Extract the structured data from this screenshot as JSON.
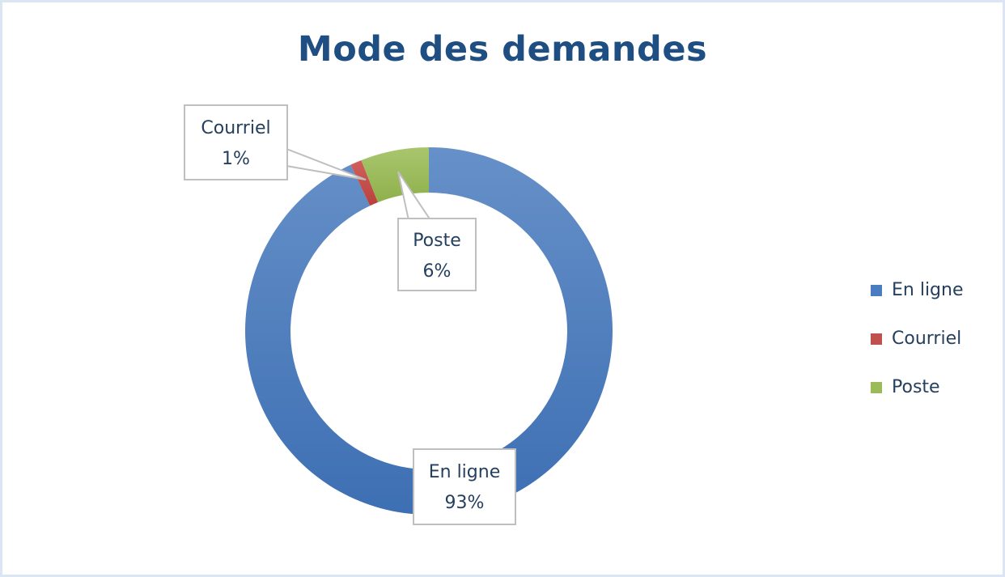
{
  "chart_data": {
    "type": "pie",
    "subtype": "doughnut",
    "title": "Mode des demandes",
    "categories": [
      "En ligne",
      "Courriel",
      "Poste"
    ],
    "values": [
      93,
      1,
      6
    ],
    "unit": "%",
    "colors": [
      "#4a7dc0",
      "#c0504d",
      "#9bbb59"
    ],
    "data_labels": [
      {
        "category": "En ligne",
        "text": "93%"
      },
      {
        "category": "Courriel",
        "text": "1%"
      },
      {
        "category": "Poste",
        "text": "6%"
      }
    ],
    "start_angle": 0,
    "direction": "clockwise",
    "legend_position": "right"
  },
  "title": "Mode des demandes",
  "labels": {
    "enligne": {
      "name": "En ligne",
      "value": "93%"
    },
    "courriel": {
      "name": "Courriel",
      "value": "1%"
    },
    "poste": {
      "name": "Poste",
      "value": "6%"
    }
  },
  "legend": [
    {
      "label": "En ligne",
      "color": "#4a7dc0"
    },
    {
      "label": "Courriel",
      "color": "#c0504d"
    },
    {
      "label": "Poste",
      "color": "#9bbb59"
    }
  ]
}
